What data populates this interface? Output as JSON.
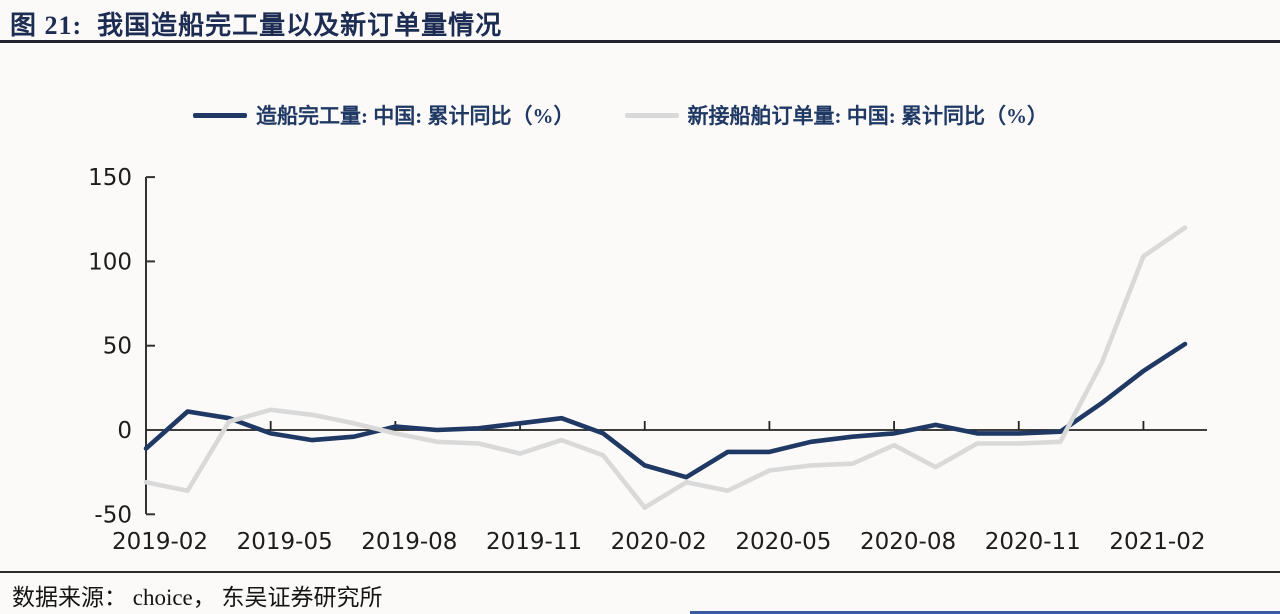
{
  "header": {
    "title": "图 21:  我国造船完工量以及新订单量情况"
  },
  "legend": [
    {
      "label": "造船完工量: 中国: 累计同比（%）",
      "color": "#1f3864"
    },
    {
      "label": "新接船舶订单量: 中国: 累计同比（%）",
      "color": "#d9d9d9"
    }
  ],
  "chart_data": {
    "type": "line",
    "title": "我国造船完工量以及新订单量情况",
    "categories": [
      "2019-02",
      "2019-03",
      "2019-04",
      "2019-05",
      "2019-06",
      "2019-07",
      "2019-08",
      "2019-09",
      "2019-10",
      "2019-11",
      "2019-12",
      "2020-01",
      "2020-02",
      "2020-03",
      "2020-04",
      "2020-05",
      "2020-06",
      "2020-07",
      "2020-08",
      "2020-09",
      "2020-10",
      "2020-11",
      "2020-12",
      "2021-01",
      "2021-02",
      "2021-03"
    ],
    "series": [
      {
        "name": "造船完工量: 中国: 累计同比（%）",
        "color": "#1f3864",
        "values": [
          -11,
          11,
          7,
          -2,
          -6,
          -4,
          2,
          0,
          1,
          4,
          7,
          -2,
          -21,
          -28,
          -13,
          -13,
          -7,
          -4,
          -2,
          3,
          -2,
          -2,
          -1,
          16,
          35,
          51
        ]
      },
      {
        "name": "新接船舶订单量: 中国: 累计同比（%）",
        "color": "#d9d9d9",
        "values": [
          -31,
          -36,
          5,
          12,
          9,
          4,
          -2,
          -7,
          -8,
          -14,
          -6,
          -15,
          -46,
          -31,
          -36,
          -24,
          -21,
          -20,
          -9,
          -22,
          -8,
          -8,
          -7,
          40,
          103,
          120
        ]
      }
    ],
    "xtick_labels": [
      "2019-02",
      "2019-05",
      "2019-08",
      "2019-11",
      "2020-02",
      "2020-05",
      "2020-08",
      "2020-11",
      "2021-02"
    ],
    "yticks": [
      150,
      100,
      50,
      0,
      -50
    ],
    "ylim": [
      -50,
      150
    ],
    "xlabel": "",
    "ylabel": "",
    "grid": false,
    "legend_position": "top"
  },
  "footer": {
    "source": "数据来源： choice， 东吴证券研究所"
  },
  "colors": {
    "accent_navy": "#1f3864",
    "line_gray": "#d9d9d9",
    "axis": "#2b2b2b",
    "background": "#fbfaf8"
  }
}
